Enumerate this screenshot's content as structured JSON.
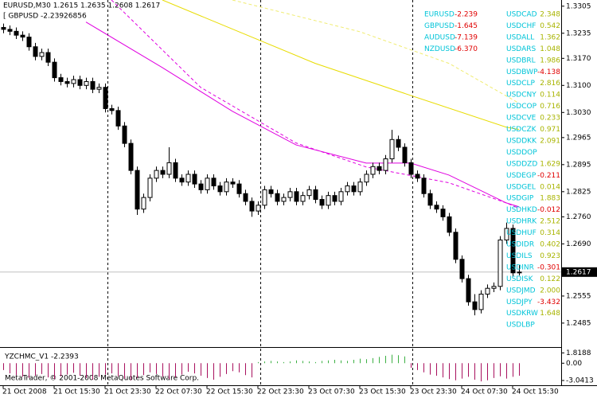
{
  "chart_data": [
    {
      "type": "candlestick",
      "title": "EURUSD,M30  1.2615 1.2635 1.2608 1.2617",
      "categories": [
        "21 Oct 2008",
        null,
        null,
        null,
        null,
        null,
        null,
        null,
        "21 Oct 15:30",
        null,
        null,
        null,
        null,
        null,
        null,
        null,
        "21 Oct 23:30",
        null,
        null,
        null,
        null,
        null,
        null,
        null,
        "22 Oct 07:30",
        null,
        null,
        null,
        null,
        null,
        null,
        null,
        "22 Oct 15:30",
        null,
        null,
        null,
        null,
        null,
        null,
        null,
        "22 Oct 23:30",
        null,
        null,
        null,
        null,
        null,
        null,
        null,
        "23 Oct 07:30",
        null,
        null,
        null,
        null,
        null,
        null,
        null,
        "23 Oct 15:30",
        null,
        null,
        null,
        null,
        null,
        null,
        null,
        "23 Oct 23:30",
        null,
        null,
        null,
        null,
        null,
        null,
        null,
        "24 Oct 07:30",
        null,
        null,
        null,
        null,
        null,
        null,
        null,
        "24 Oct 15:30",
        null
      ],
      "open": [
        1.325,
        1.3245,
        1.324,
        1.323,
        1.3225,
        1.32,
        1.3175,
        1.3185,
        1.316,
        1.312,
        1.311,
        1.3105,
        1.3115,
        1.31,
        1.311,
        1.309,
        1.3095,
        1.304,
        1.3035,
        1.2995,
        1.295,
        1.288,
        1.278,
        1.281,
        1.286,
        1.288,
        1.287,
        1.29,
        1.286,
        1.285,
        1.287,
        1.2845,
        1.283,
        1.286,
        1.284,
        1.2825,
        1.285,
        1.2845,
        1.282,
        1.28,
        1.2775,
        1.279,
        1.283,
        1.282,
        1.28,
        1.281,
        1.2825,
        1.28,
        1.2815,
        1.283,
        1.2805,
        1.279,
        1.2815,
        1.28,
        1.2825,
        1.284,
        1.2825,
        1.285,
        1.287,
        1.289,
        1.288,
        1.291,
        1.296,
        1.294,
        1.29,
        1.287,
        1.286,
        1.282,
        1.279,
        1.278,
        1.276,
        1.272,
        1.265,
        1.26,
        1.254,
        1.252,
        1.256,
        1.2575,
        1.258,
        1.27,
        1.273,
        1.2615
      ],
      "high": [
        1.326,
        1.3255,
        1.325,
        1.324,
        1.3235,
        1.321,
        1.3195,
        1.3195,
        1.317,
        1.313,
        1.312,
        1.3125,
        1.3125,
        1.312,
        1.312,
        1.3105,
        1.3105,
        1.305,
        1.3045,
        1.3005,
        1.296,
        1.289,
        1.282,
        1.287,
        1.289,
        1.289,
        1.294,
        1.291,
        1.287,
        1.288,
        1.288,
        1.2855,
        1.287,
        1.287,
        1.285,
        1.286,
        1.286,
        1.2855,
        1.283,
        1.281,
        1.28,
        1.284,
        1.284,
        1.283,
        1.282,
        1.2835,
        1.2835,
        1.2825,
        1.284,
        1.284,
        1.2815,
        1.2825,
        1.2825,
        1.2835,
        1.285,
        1.285,
        1.286,
        1.288,
        1.29,
        1.29,
        1.292,
        1.2985,
        1.297,
        1.295,
        1.291,
        1.288,
        1.287,
        1.283,
        1.28,
        1.279,
        1.277,
        1.273,
        1.266,
        1.261,
        1.256,
        1.257,
        1.2585,
        1.259,
        1.271,
        1.2745,
        1.274,
        1.2635
      ],
      "low": [
        1.3235,
        1.323,
        1.322,
        1.3215,
        1.319,
        1.3165,
        1.3165,
        1.315,
        1.311,
        1.31,
        1.3095,
        1.3095,
        1.309,
        1.309,
        1.308,
        1.308,
        1.303,
        1.3025,
        1.2985,
        1.294,
        1.287,
        1.2765,
        1.277,
        1.28,
        1.285,
        1.286,
        1.286,
        1.285,
        1.284,
        1.284,
        1.2835,
        1.282,
        1.282,
        1.283,
        1.2815,
        1.2815,
        1.2835,
        1.281,
        1.279,
        1.276,
        1.2765,
        1.278,
        1.281,
        1.279,
        1.279,
        1.28,
        1.279,
        1.279,
        1.2805,
        1.2795,
        1.278,
        1.278,
        1.279,
        1.279,
        1.2815,
        1.2815,
        1.2815,
        1.284,
        1.286,
        1.287,
        1.287,
        1.29,
        1.293,
        1.289,
        1.286,
        1.285,
        1.281,
        1.278,
        1.277,
        1.275,
        1.271,
        1.264,
        1.259,
        1.253,
        1.2505,
        1.251,
        1.255,
        1.2565,
        1.257,
        1.269,
        1.2605,
        1.2608
      ],
      "close": [
        1.3245,
        1.324,
        1.323,
        1.3225,
        1.32,
        1.3175,
        1.3185,
        1.316,
        1.312,
        1.311,
        1.3105,
        1.3115,
        1.31,
        1.311,
        1.309,
        1.3095,
        1.304,
        1.3035,
        1.2995,
        1.295,
        1.288,
        1.278,
        1.281,
        1.286,
        1.288,
        1.287,
        1.29,
        1.286,
        1.285,
        1.287,
        1.2845,
        1.283,
        1.286,
        1.284,
        1.2825,
        1.285,
        1.2845,
        1.282,
        1.28,
        1.2775,
        1.279,
        1.283,
        1.282,
        1.28,
        1.281,
        1.2825,
        1.28,
        1.2815,
        1.283,
        1.2805,
        1.279,
        1.2815,
        1.28,
        1.2825,
        1.284,
        1.2825,
        1.285,
        1.287,
        1.289,
        1.288,
        1.291,
        1.296,
        1.294,
        1.29,
        1.287,
        1.286,
        1.282,
        1.279,
        1.278,
        1.276,
        1.272,
        1.265,
        1.26,
        1.254,
        1.252,
        1.256,
        1.2575,
        1.258,
        1.27,
        1.273,
        1.2615,
        1.2617
      ],
      "up_color": "#ffffff",
      "down_color": "#000000",
      "ylim": [
        1.2423,
        1.3321
      ],
      "yticks": [
        1.3305,
        1.3235,
        {
          "value": 1.317,
          "label": "1.3170"
        },
        {
          "value": 1.31,
          "label": "1.3100"
        },
        {
          "value": 1.303,
          "label": "1.3030"
        },
        1.2965,
        1.2895,
        1.2825,
        {
          "value": 1.276,
          "label": "1.2760"
        },
        {
          "value": 1.269,
          "label": "1.2690"
        },
        1.2555,
        1.2485
      ],
      "current_price": 1.2617,
      "lines": [
        {
          "color": "#e000e0",
          "dashed": false,
          "x": [
            13,
            25,
            36,
            46,
            57,
            64,
            70,
            79,
            81
          ],
          "values": [
            1.3264,
            1.3146,
            1.3033,
            1.2946,
            1.2899,
            1.2899,
            1.2868,
            1.2796,
            1.2786
          ]
        },
        {
          "color": "#e000e0",
          "dashed": true,
          "x": [
            17,
            31,
            46,
            57,
            70,
            79,
            81
          ],
          "values": [
            1.3321,
            1.3095,
            1.2951,
            1.2889,
            1.2848,
            1.2796,
            1.2782
          ]
        },
        {
          "color": "#e8dc00",
          "dashed": false,
          "x": [
            25,
            37,
            49,
            64,
            79,
            81
          ],
          "values": [
            1.3321,
            1.3239,
            1.3157,
            1.3074,
            1.2992,
            1.2986
          ]
        },
        {
          "color": "#f0ec70",
          "dashed": true,
          "x": [
            36,
            56,
            70,
            81
          ],
          "values": [
            1.3321,
            1.3239,
            1.3157,
            1.3054
          ]
        }
      ]
    },
    {
      "type": "bar",
      "title": "YZCHMC_V1 -2.2393",
      "values": [
        -1.2,
        -1.8,
        -2.1,
        -2.4,
        -2.6,
        -2.2,
        -1.9,
        -2.5,
        -2.8,
        -2.3,
        -2.0,
        -1.7,
        -2.2,
        -2.6,
        -2.9,
        -2.4,
        -2.0,
        -1.8,
        -2.3,
        -2.7,
        -3.0,
        -2.6,
        -2.1,
        -1.6,
        -1.9,
        -2.4,
        -2.8,
        -2.5,
        -2.0,
        -1.5,
        -1.8,
        -2.2,
        -2.6,
        -2.9,
        -2.4,
        -1.9,
        -1.4,
        -1.6,
        -2.1,
        -2.5,
        0.2,
        0.3,
        0.4,
        0.3,
        0.2,
        0.3,
        0.5,
        0.4,
        0.3,
        0.2,
        0.4,
        0.5,
        0.6,
        0.5,
        0.4,
        0.6,
        0.8,
        0.7,
        0.9,
        1.1,
        1.3,
        1.5,
        1.4,
        1.2,
        -0.8,
        -1.2,
        -1.6,
        -2.0,
        -2.2,
        -2.5,
        -2.8,
        -3.0,
        -2.7,
        -2.4,
        -2.9,
        -3.2,
        -3.0,
        -2.6,
        -2.3,
        -2.7,
        -2.4,
        -2.2
      ],
      "positive_color": "#3cb043",
      "negative_color": "#a8105e",
      "ylim": [
        -3.6,
        2.7
      ],
      "yticks": [
        1.8188,
        {
          "value": 0,
          "label": "0.00"
        },
        -3.0413
      ]
    }
  ],
  "overlay_label": "[ GBPUSD -2.23926856",
  "copyright": "MetaTrader, © 2001-2008 MetaQuotes Software Corp.",
  "symbol_color": "#00c4d8",
  "positive_color": "#a8b400",
  "negative_color": "#e00000",
  "pairs_left": [
    {
      "symbol": "EURUSD",
      "value": "-2.239"
    },
    {
      "symbol": "GBPUSD",
      "value": "-1.645"
    },
    {
      "symbol": "AUDUSD",
      "value": "-7.139"
    },
    {
      "symbol": "NZDUSD",
      "value": "-6.370"
    }
  ],
  "pairs_right": [
    {
      "symbol": "USDCAD",
      "value": "2.348"
    },
    {
      "symbol": "USDCHF",
      "value": "0.542"
    },
    {
      "symbol": "USDALL",
      "value": "1.362"
    },
    {
      "symbol": "USDARS",
      "value": "1.048"
    },
    {
      "symbol": "USDBRL",
      "value": "1.986"
    },
    {
      "symbol": "USDBWP",
      "value": "-4.138"
    },
    {
      "symbol": "USDCLP",
      "value": "2.816"
    },
    {
      "symbol": "USDCNY",
      "value": "0.114"
    },
    {
      "symbol": "USDCOP",
      "value": "0.716"
    },
    {
      "symbol": "USDCVE",
      "value": "0.233"
    },
    {
      "symbol": "USDCZK",
      "value": "0.971"
    },
    {
      "symbol": "USDDKK",
      "value": "2.091"
    },
    {
      "symbol": "USDDOP",
      "value": null
    },
    {
      "symbol": "USDDZD",
      "value": "1.629"
    },
    {
      "symbol": "USDEGP",
      "value": "-0.211"
    },
    {
      "symbol": "USDGEL",
      "value": "0.014"
    },
    {
      "symbol": "USDGIP",
      "value": "1.883"
    },
    {
      "symbol": "USDHKD",
      "value": "-0.012"
    },
    {
      "symbol": "USDHRK",
      "value": "2.512"
    },
    {
      "symbol": "USDHUF",
      "value": "0.314"
    },
    {
      "symbol": "USDIDR",
      "value": "0.402"
    },
    {
      "symbol": "USDILS",
      "value": "0.923"
    },
    {
      "symbol": "USDINR",
      "value": "-0.301"
    },
    {
      "symbol": "USDISK",
      "value": "0.122"
    },
    {
      "symbol": "USDJMD",
      "value": "2.000"
    },
    {
      "symbol": "USDJPY",
      "value": "-3.432"
    },
    {
      "symbol": "USDKRW",
      "value": "1.648"
    },
    {
      "symbol": "USDLBP",
      "value": null
    }
  ]
}
